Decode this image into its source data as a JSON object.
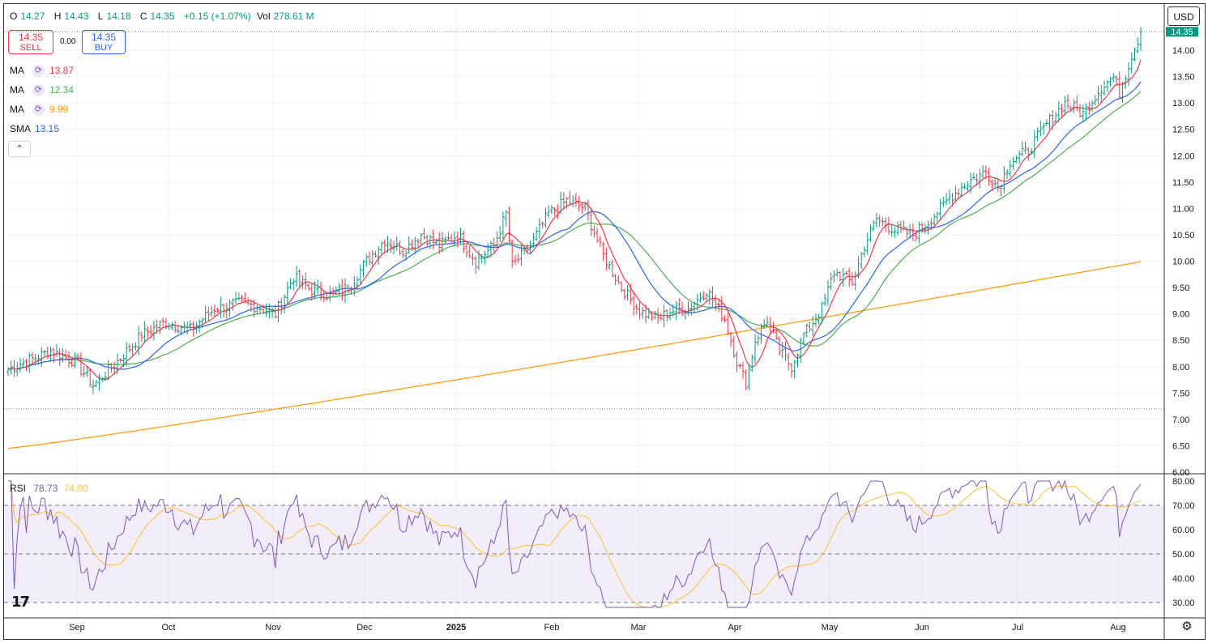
{
  "header": {
    "open_label": "O",
    "open": "14.27",
    "high_label": "H",
    "high": "14.43",
    "low_label": "L",
    "low": "14.18",
    "close_label": "C",
    "close": "14.35",
    "change": "+0.15 (+1.07%)",
    "vol_label": "Vol",
    "vol": "278.61 M"
  },
  "trade": {
    "sell_price": "14.35",
    "sell_label": "SELL",
    "spread": "0.00",
    "buy_price": "14.35",
    "buy_label": "BUY"
  },
  "indicators": [
    {
      "name": "MA",
      "value": "13.87",
      "color": "#f23645",
      "icon": "refresh-icon"
    },
    {
      "name": "MA",
      "value": "12.34",
      "color": "#4caf50",
      "icon": "refresh-icon"
    },
    {
      "name": "MA",
      "value": "9.99",
      "color": "#ff9800",
      "icon": "refresh-icon"
    },
    {
      "name": "SMA",
      "value": "13.15",
      "color": "#2962ff"
    }
  ],
  "currency": "USD",
  "last_price_tag": "14.35",
  "rsi": {
    "label": "RSI",
    "value": "78.73",
    "ma_value": "74.00"
  },
  "colors": {
    "up": "#089981",
    "down": "#f23645",
    "rsi": "#7e57c2",
    "rsi_ma": "#fbc02d"
  },
  "chart_data": {
    "type": "ohlc",
    "x_ticks": [
      "Sep",
      "Oct",
      "Nov",
      "Dec",
      "2025",
      "Feb",
      "Mar",
      "Apr",
      "May",
      "Jun",
      "Jul",
      "Aug"
    ],
    "price_ticks": [
      "14.00",
      "13.50",
      "13.00",
      "12.50",
      "12.00",
      "11.50",
      "11.00",
      "10.50",
      "10.00",
      "9.50",
      "9.00",
      "8.50",
      "8.00",
      "7.50",
      "7.00",
      "6.50",
      "6.00"
    ],
    "ylim": [
      6.0,
      14.55
    ],
    "rsi_ticks": [
      "80.00",
      "70.00",
      "60.00",
      "50.00",
      "40.00",
      "30.00"
    ],
    "rsi_ylim": [
      27,
      81
    ],
    "rsi_levels": [
      70,
      50,
      30
    ],
    "reference_lines": [
      14.35,
      7.2
    ],
    "close_anchors": [
      [
        0,
        7.95
      ],
      [
        14,
        8.3
      ],
      [
        22,
        8.1
      ],
      [
        28,
        7.65
      ],
      [
        36,
        8.1
      ],
      [
        44,
        8.6
      ],
      [
        52,
        8.85
      ],
      [
        60,
        8.7
      ],
      [
        68,
        9.1
      ],
      [
        76,
        9.2
      ],
      [
        82,
        9.15
      ],
      [
        88,
        9.0
      ],
      [
        94,
        9.7
      ],
      [
        100,
        9.45
      ],
      [
        106,
        9.35
      ],
      [
        112,
        9.5
      ],
      [
        118,
        10.0
      ],
      [
        124,
        10.4
      ],
      [
        130,
        10.2
      ],
      [
        136,
        10.5
      ],
      [
        142,
        10.3
      ],
      [
        148,
        10.5
      ],
      [
        154,
        10.0
      ],
      [
        160,
        10.3
      ],
      [
        164,
        10.9
      ],
      [
        166,
        9.9
      ],
      [
        172,
        10.3
      ],
      [
        178,
        10.9
      ],
      [
        184,
        11.15
      ],
      [
        190,
        11.0
      ],
      [
        196,
        10.1
      ],
      [
        202,
        9.5
      ],
      [
        208,
        9.05
      ],
      [
        214,
        8.9
      ],
      [
        218,
        9.05
      ],
      [
        224,
        9.1
      ],
      [
        230,
        9.45
      ],
      [
        236,
        8.9
      ],
      [
        240,
        8.1
      ],
      [
        243,
        7.7
      ],
      [
        246,
        8.5
      ],
      [
        250,
        8.9
      ],
      [
        254,
        8.3
      ],
      [
        258,
        8.0
      ],
      [
        262,
        8.6
      ],
      [
        268,
        9.1
      ],
      [
        272,
        9.8
      ],
      [
        278,
        9.6
      ],
      [
        282,
        10.3
      ],
      [
        286,
        10.8
      ],
      [
        292,
        10.6
      ],
      [
        298,
        10.5
      ],
      [
        304,
        10.8
      ],
      [
        310,
        11.2
      ],
      [
        316,
        11.5
      ],
      [
        322,
        11.7
      ],
      [
        326,
        11.4
      ],
      [
        330,
        11.9
      ],
      [
        336,
        12.1
      ],
      [
        342,
        12.6
      ],
      [
        348,
        13.0
      ],
      [
        354,
        12.8
      ],
      [
        360,
        13.3
      ],
      [
        364,
        13.5
      ],
      [
        366,
        13.2
      ],
      [
        370,
        13.9
      ],
      [
        373,
        14.35
      ]
    ],
    "series": [
      {
        "name": "MA",
        "value": 13.87,
        "color": "#f23645"
      },
      {
        "name": "MA",
        "value": 12.34,
        "color": "#4caf50"
      },
      {
        "name": "MA",
        "value": 9.99,
        "color": "#ff9800"
      },
      {
        "name": "SMA",
        "value": 13.15,
        "color": "#2962ff"
      },
      {
        "name": "RSI",
        "value": 78.73,
        "color": "#7e57c2"
      },
      {
        "name": "RSI MA",
        "value": 74.0,
        "color": "#fbc02d"
      }
    ]
  }
}
